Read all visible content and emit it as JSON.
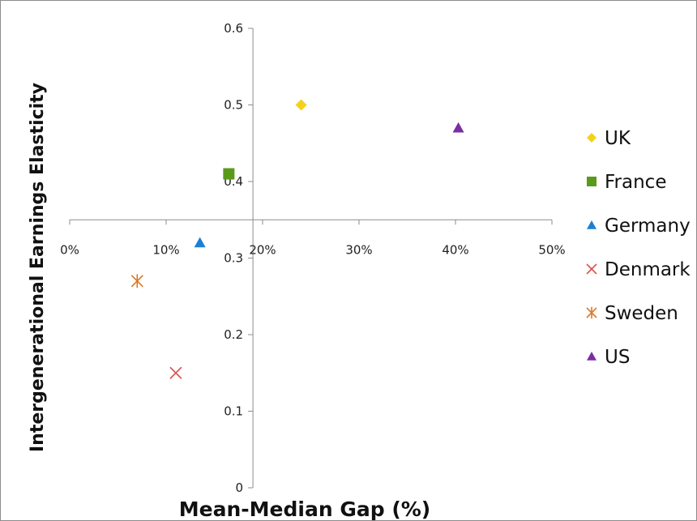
{
  "chart_data": {
    "type": "scatter",
    "title": "",
    "xlabel": "Mean-Median Gap (%)",
    "ylabel": "Intergenerational Earnings Elasticity",
    "xlim": [
      0,
      50
    ],
    "ylim": [
      0,
      0.6
    ],
    "x_ticks": [
      "0%",
      "10%",
      "20%",
      "30%",
      "40%",
      "50%"
    ],
    "y_ticks": [
      "0",
      "0.1",
      "0.2",
      "0.3",
      "0.4",
      "0.5",
      "0.6"
    ],
    "x_axis_crosses_y_at": 0.35,
    "y_axis_crosses_x_at": 19,
    "grid": false,
    "legend_position": "right",
    "series": [
      {
        "name": "UK",
        "marker": "diamond",
        "color": "#f2d21b",
        "points": [
          {
            "x": 24,
            "y": 0.5
          }
        ]
      },
      {
        "name": "France",
        "marker": "square",
        "color": "#5a9a1a",
        "points": [
          {
            "x": 16.5,
            "y": 0.41
          }
        ]
      },
      {
        "name": "Germany",
        "marker": "triangle",
        "color": "#1b7fd6",
        "points": [
          {
            "x": 13.5,
            "y": 0.32
          }
        ]
      },
      {
        "name": "Denmark",
        "marker": "x",
        "color": "#d9534f",
        "points": [
          {
            "x": 11,
            "y": 0.15
          }
        ]
      },
      {
        "name": "Sweden",
        "marker": "star",
        "color": "#d9792a",
        "points": [
          {
            "x": 7,
            "y": 0.27
          }
        ]
      },
      {
        "name": "US",
        "marker": "triangle",
        "color": "#7a2fa0",
        "points": [
          {
            "x": 40.3,
            "y": 0.47
          }
        ]
      }
    ]
  }
}
